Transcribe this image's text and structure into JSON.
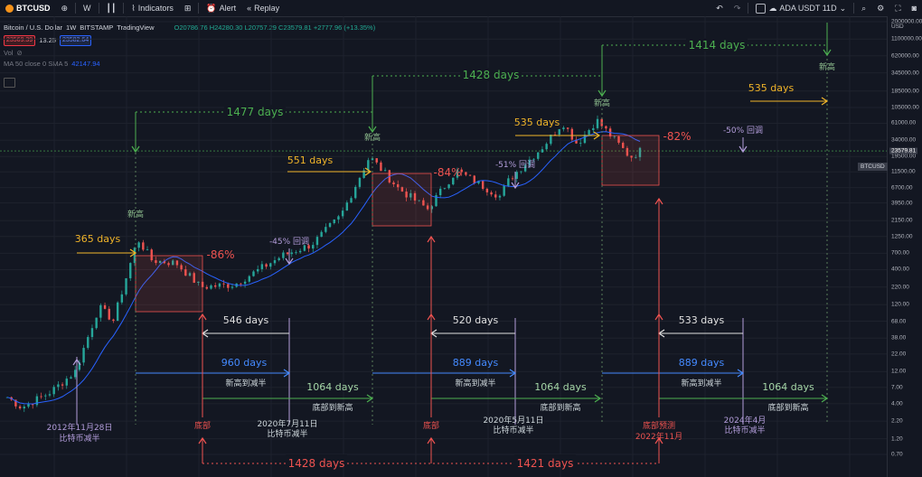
{
  "toolbar": {
    "symbol": "BTCUSD",
    "interval": "W",
    "indicators_label": "Indicators",
    "alert_label": "Alert",
    "replay_label": "Replay",
    "compare_symbol": "ADA USDT 11D"
  },
  "legend": {
    "title": "Bitcoin / U.S. Dollar",
    "interval": "1W",
    "exchange": "BITSTAMP",
    "source": "TradingView",
    "ohlc": "O20786.76  H24280.30  L20757.29  C23579.81  +2777.96 (+13.35%)",
    "bid": "23569.39",
    "spread": "13.25",
    "ask": "23582.64",
    "vol_label": "Vol",
    "ma_label": "MA 50 close 0 SMA 5",
    "ma_value": "42147.94"
  },
  "axis": {
    "currency": "USD",
    "current_price": "23579.81",
    "current_symbol": "BTCUSD",
    "ticks": [
      "2000000.00",
      "1100000.00",
      "620000.00",
      "345000.00",
      "185000.00",
      "105000.00",
      "61000.00",
      "34000.00",
      "19500.00",
      "11500.00",
      "6700.00",
      "3950.00",
      "2150.00",
      "1250.00",
      "700.00",
      "400.00",
      "220.00",
      "120.00",
      "68.00",
      "38.00",
      "22.00",
      "12.00",
      "7.00",
      "4.00",
      "2.20",
      "1.20",
      "0.70"
    ]
  },
  "colors": {
    "background": "#131722",
    "grid": "#1e222d",
    "candle_up": "#26a69a",
    "candle_down": "#ef5350",
    "ma_line": "#2962ff",
    "yellow": "#f0b429",
    "green": "#4caf50",
    "blue": "#448aff",
    "purple": "#b39ddb",
    "red": "#ef5350"
  },
  "chart_data": {
    "type": "candlestick",
    "series_name": "Bitcoin / U.S. Dollar",
    "y_scale": "log",
    "ylim": [
      0.7,
      2000000
    ],
    "price_path": [
      {
        "date": "2011-09",
        "price": 5
      },
      {
        "date": "2011-12",
        "price": 3.5
      },
      {
        "date": "2012-06",
        "price": 6
      },
      {
        "date": "2012-11",
        "price": 12
      },
      {
        "date": "2013-04",
        "price": 110
      },
      {
        "date": "2013-07",
        "price": 70
      },
      {
        "date": "2013-12",
        "price": 1150
      },
      {
        "date": "2014-03",
        "price": 550
      },
      {
        "date": "2014-08",
        "price": 500
      },
      {
        "date": "2015-01",
        "price": 220
      },
      {
        "date": "2015-08",
        "price": 240
      },
      {
        "date": "2016-06",
        "price": 650
      },
      {
        "date": "2016-12",
        "price": 950
      },
      {
        "date": "2017-06",
        "price": 2500
      },
      {
        "date": "2017-12",
        "price": 19500
      },
      {
        "date": "2018-06",
        "price": 6500
      },
      {
        "date": "2018-12",
        "price": 3200
      },
      {
        "date": "2019-06",
        "price": 12000
      },
      {
        "date": "2020-03",
        "price": 5000
      },
      {
        "date": "2020-05",
        "price": 9000
      },
      {
        "date": "2020-12",
        "price": 28000
      },
      {
        "date": "2021-04",
        "price": 63000
      },
      {
        "date": "2021-07",
        "price": 30000
      },
      {
        "date": "2021-11",
        "price": 68000
      },
      {
        "date": "2022-06",
        "price": 19000
      },
      {
        "date": "2022-08",
        "price": 23579.81
      }
    ],
    "annotations": {
      "cycle_top_intervals": [
        "1477 days",
        "1428 days",
        "1414 days"
      ],
      "halving_to_top": [
        "365 days",
        "551 days",
        "535 days",
        "535 days"
      ],
      "drawdowns": [
        "-86%",
        "-84%",
        "-82%"
      ],
      "retracements": [
        "-45% 回调",
        "-51% 回调",
        "-50% 回调"
      ],
      "peak_label": "新高",
      "top_to_halving": [
        "546 days",
        "520 days",
        "533 days"
      ],
      "bottom_to_halving": [
        "960 days",
        "889 days",
        "889 days"
      ],
      "bottom_to_top": [
        "1064 days",
        "1064 days",
        "1064 days"
      ],
      "label_top_to_halving": "新高到减半",
      "label_bottom_to_top": "底部到新高",
      "bottom_label": "底部",
      "bottom_prediction_label": "底部预测",
      "bottom_prediction_date": "2022年11月",
      "halving_dates": [
        "2012年11月28日",
        "2020年7月11日",
        "2020年5月11日",
        "2024年4月"
      ],
      "halving_label": "比特币减半",
      "bottom_intervals": [
        "1428 days",
        "1421 days"
      ]
    }
  }
}
